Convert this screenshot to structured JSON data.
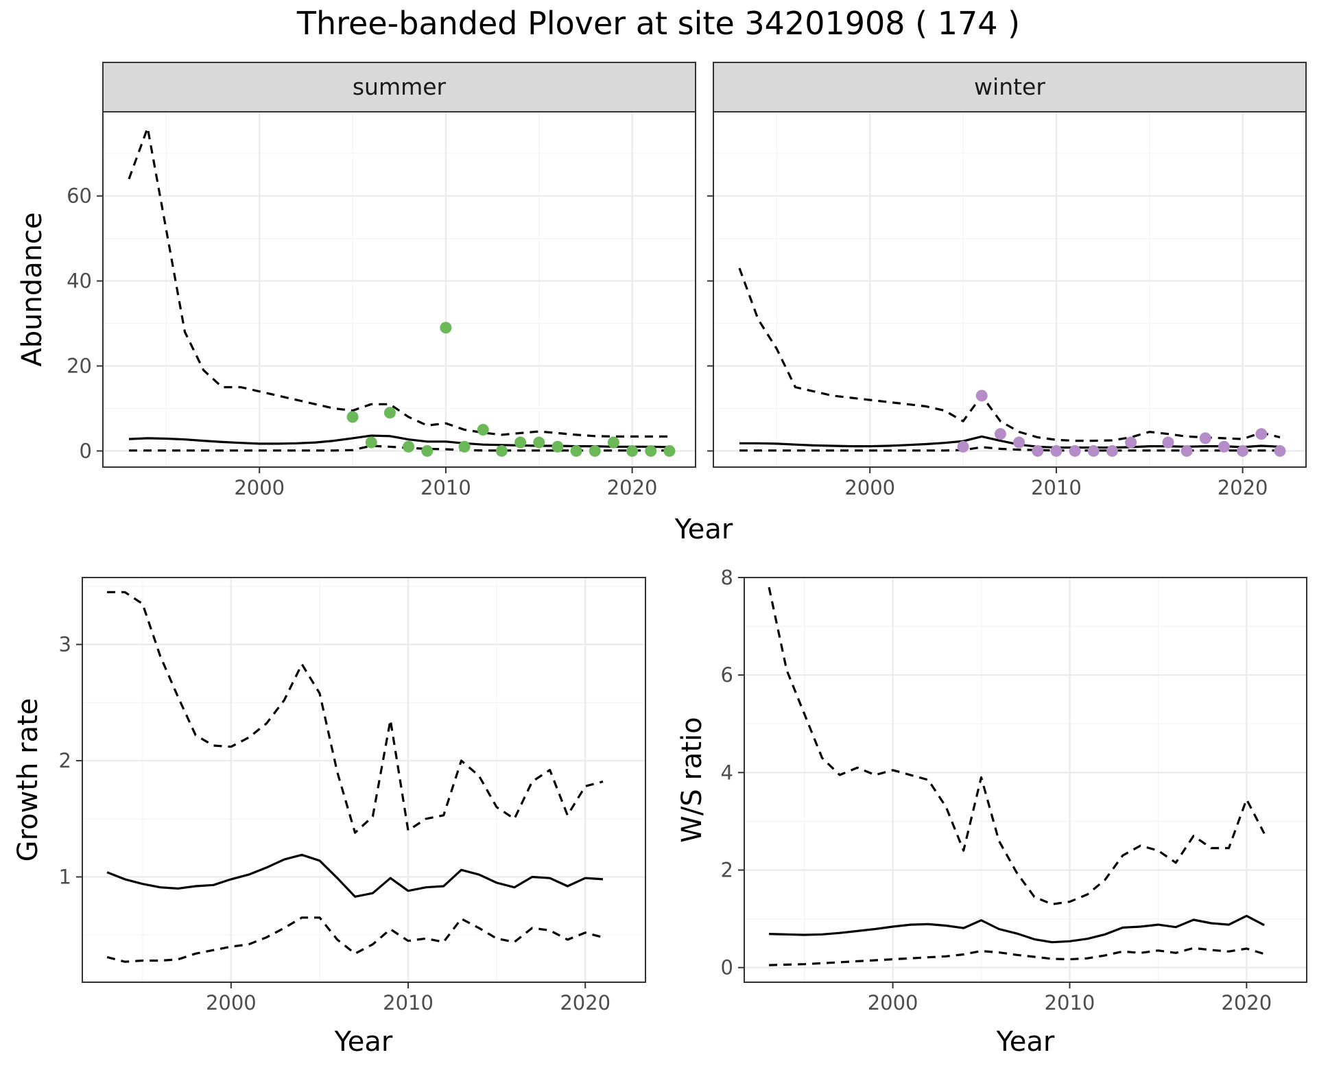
{
  "title": "Three-banded Plover at site 34201908 ( 174 )",
  "colors": {
    "summer_points": "#6ab857",
    "winter_points": "#b48cc8"
  },
  "chart_data": [
    {
      "id": "summer",
      "type": "line",
      "strip": "summer",
      "ylabel": "Abundance",
      "xlabel": "",
      "xlim": [
        1991.6,
        2023.4
      ],
      "ylim": [
        -3.8,
        79.8
      ],
      "xticks": [
        2000,
        2010,
        2020
      ],
      "yticks": [
        0,
        20,
        40,
        60
      ],
      "x": [
        1993,
        1994,
        1995,
        1996,
        1997,
        1998,
        1999,
        2000,
        2001,
        2002,
        2003,
        2004,
        2005,
        2006,
        2007,
        2008,
        2009,
        2010,
        2011,
        2012,
        2013,
        2014,
        2015,
        2016,
        2017,
        2018,
        2019,
        2020,
        2021,
        2022
      ],
      "series": [
        {
          "role": "mean",
          "values": [
            2.8,
            3.0,
            2.9,
            2.7,
            2.4,
            2.1,
            1.9,
            1.7,
            1.7,
            1.8,
            2.0,
            2.4,
            3.0,
            3.6,
            3.5,
            2.7,
            2.2,
            2.2,
            1.8,
            1.5,
            1.4,
            1.3,
            1.2,
            1.2,
            1.1,
            1.1,
            1.0,
            1.0,
            1.0,
            0.9
          ]
        },
        {
          "role": "upper",
          "values": [
            64,
            76,
            52,
            28,
            19,
            15,
            15,
            14,
            13,
            12,
            11,
            10,
            9.5,
            11,
            11,
            8,
            6,
            6.5,
            5,
            4.3,
            3.8,
            4.2,
            4.6,
            4.2,
            3.8,
            3.5,
            3.4,
            3.4,
            3.4,
            3.4
          ]
        },
        {
          "role": "lower",
          "values": [
            0.1,
            0.1,
            0.1,
            0.1,
            0.1,
            0.1,
            0.1,
            0.1,
            0.1,
            0.1,
            0.1,
            0.1,
            0.2,
            1.2,
            1.0,
            0.7,
            0.5,
            0.4,
            0.2,
            0.1,
            0.1,
            0.1,
            0.1,
            0.1,
            0.1,
            0.1,
            0.1,
            0.1,
            0.1,
            0.1
          ]
        }
      ],
      "points": {
        "x": [
          2005,
          2006,
          2007,
          2008,
          2009,
          2010,
          2011,
          2012,
          2013,
          2014,
          2015,
          2016,
          2017,
          2018,
          2019,
          2020,
          2021,
          2022
        ],
        "y": [
          8,
          2,
          9,
          1,
          0,
          29,
          1,
          5,
          0,
          2,
          2,
          1,
          0,
          0,
          2,
          0,
          0,
          0
        ]
      }
    },
    {
      "id": "winter",
      "type": "line",
      "strip": "winter",
      "ylabel": "",
      "xlabel": "",
      "xlim": [
        1991.6,
        2023.4
      ],
      "ylim": [
        -3.8,
        79.8
      ],
      "xticks": [
        2000,
        2010,
        2020
      ],
      "yticks": [
        0,
        20,
        40,
        60
      ],
      "x": [
        1993,
        1994,
        1995,
        1996,
        1997,
        1998,
        1999,
        2000,
        2001,
        2002,
        2003,
        2004,
        2005,
        2006,
        2007,
        2008,
        2009,
        2010,
        2011,
        2012,
        2013,
        2014,
        2015,
        2016,
        2017,
        2018,
        2019,
        2020,
        2021,
        2022
      ],
      "series": [
        {
          "role": "mean",
          "values": [
            1.8,
            1.8,
            1.7,
            1.5,
            1.3,
            1.2,
            1.1,
            1.1,
            1.2,
            1.4,
            1.6,
            1.9,
            2.3,
            3.4,
            2.4,
            1.5,
            1.0,
            0.8,
            0.8,
            0.8,
            0.8,
            0.9,
            1.1,
            1.1,
            1.0,
            1.1,
            1.1,
            0.9,
            1.2,
            1.0
          ]
        },
        {
          "role": "upper",
          "values": [
            43,
            31,
            24,
            15,
            14,
            13,
            12.5,
            12,
            11.5,
            11,
            10.5,
            9.5,
            7,
            13,
            7,
            4.5,
            3.2,
            2.6,
            2.4,
            2.4,
            2.5,
            3.2,
            4.5,
            4,
            3.4,
            3.2,
            3,
            2.8,
            4.3,
            3.2
          ]
        },
        {
          "role": "lower",
          "values": [
            0.1,
            0.1,
            0.1,
            0.1,
            0.1,
            0.1,
            0.1,
            0.1,
            0.1,
            0.1,
            0.1,
            0.1,
            0.2,
            0.9,
            0.5,
            0.3,
            0.2,
            0.1,
            0.1,
            0.1,
            0.1,
            0.1,
            0.1,
            0.1,
            0.1,
            0.1,
            0.1,
            0.1,
            0.1,
            0.1
          ]
        }
      ],
      "points": {
        "x": [
          2005,
          2006,
          2007,
          2008,
          2009,
          2010,
          2011,
          2012,
          2013,
          2014,
          2016,
          2017,
          2018,
          2019,
          2020,
          2021,
          2022
        ],
        "y": [
          1,
          13,
          4,
          2,
          0,
          0,
          0,
          0,
          0,
          2,
          2,
          0,
          3,
          1,
          0,
          4,
          0
        ]
      }
    },
    {
      "id": "growth",
      "type": "line",
      "ylabel": "Growth rate",
      "xlabel": "Year",
      "xlim": [
        1991.6,
        2023.4
      ],
      "ylim": [
        0.094,
        3.576
      ],
      "xticks": [
        2000,
        2010,
        2020
      ],
      "yticks": [
        1,
        2,
        3
      ],
      "x": [
        1993,
        1994,
        1995,
        1996,
        1997,
        1998,
        1999,
        2000,
        2001,
        2002,
        2003,
        2004,
        2005,
        2006,
        2007,
        2008,
        2009,
        2010,
        2011,
        2012,
        2013,
        2014,
        2015,
        2016,
        2017,
        2018,
        2019,
        2020,
        2021
      ],
      "series": [
        {
          "role": "mean",
          "values": [
            1.04,
            0.98,
            0.94,
            0.91,
            0.9,
            0.92,
            0.93,
            0.98,
            1.02,
            1.08,
            1.15,
            1.19,
            1.14,
            0.99,
            0.83,
            0.86,
            0.99,
            0.88,
            0.91,
            0.92,
            1.06,
            1.02,
            0.95,
            0.91,
            1.0,
            0.99,
            0.92,
            0.99,
            0.98
          ]
        },
        {
          "role": "upper",
          "values": [
            3.45,
            3.45,
            3.35,
            2.9,
            2.55,
            2.22,
            2.13,
            2.12,
            2.2,
            2.32,
            2.52,
            2.83,
            2.58,
            1.9,
            1.38,
            1.52,
            2.35,
            1.4,
            1.5,
            1.53,
            2.0,
            1.87,
            1.6,
            1.5,
            1.82,
            1.92,
            1.53,
            1.78,
            1.82
          ]
        },
        {
          "role": "lower",
          "values": [
            0.31,
            0.27,
            0.28,
            0.28,
            0.29,
            0.34,
            0.37,
            0.4,
            0.42,
            0.48,
            0.56,
            0.65,
            0.65,
            0.46,
            0.34,
            0.42,
            0.55,
            0.45,
            0.47,
            0.44,
            0.64,
            0.56,
            0.47,
            0.44,
            0.56,
            0.54,
            0.46,
            0.52,
            0.48
          ]
        }
      ]
    },
    {
      "id": "ws",
      "type": "line",
      "ylabel": "W/S ratio",
      "xlabel": "Year",
      "xlim": [
        1991.6,
        2023.4
      ],
      "ylim": [
        -0.3,
        8.0
      ],
      "xticks": [
        2000,
        2010,
        2020
      ],
      "yticks": [
        0,
        2,
        4,
        6,
        8
      ],
      "x": [
        1993,
        1994,
        1995,
        1996,
        1997,
        1998,
        1999,
        2000,
        2001,
        2002,
        2003,
        2004,
        2005,
        2006,
        2007,
        2008,
        2009,
        2010,
        2011,
        2012,
        2013,
        2014,
        2015,
        2016,
        2017,
        2018,
        2019,
        2020,
        2021
      ],
      "series": [
        {
          "role": "mean",
          "values": [
            0.69,
            0.68,
            0.67,
            0.68,
            0.71,
            0.75,
            0.79,
            0.84,
            0.88,
            0.89,
            0.86,
            0.81,
            0.97,
            0.79,
            0.7,
            0.58,
            0.52,
            0.54,
            0.59,
            0.68,
            0.82,
            0.84,
            0.88,
            0.83,
            0.98,
            0.91,
            0.88,
            1.06,
            0.87
          ]
        },
        {
          "role": "upper",
          "values": [
            7.8,
            6.1,
            5.2,
            4.3,
            3.95,
            4.1,
            3.95,
            4.05,
            3.95,
            3.85,
            3.3,
            2.4,
            3.9,
            2.6,
            1.95,
            1.45,
            1.3,
            1.35,
            1.5,
            1.8,
            2.3,
            2.5,
            2.4,
            2.15,
            2.7,
            2.45,
            2.45,
            3.45,
            2.75
          ]
        },
        {
          "role": "lower",
          "values": [
            0.05,
            0.06,
            0.07,
            0.09,
            0.11,
            0.13,
            0.15,
            0.17,
            0.19,
            0.21,
            0.23,
            0.27,
            0.34,
            0.31,
            0.26,
            0.22,
            0.18,
            0.17,
            0.19,
            0.25,
            0.33,
            0.3,
            0.35,
            0.3,
            0.4,
            0.36,
            0.33,
            0.39,
            0.28
          ]
        }
      ]
    }
  ]
}
